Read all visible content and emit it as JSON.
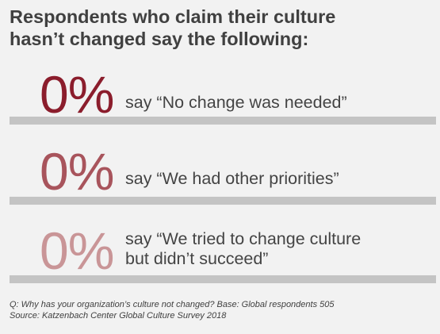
{
  "title": {
    "line1": "Respondents who claim their culture",
    "line2": "hasn’t changed say the following:"
  },
  "chart_data": {
    "type": "table",
    "items": [
      {
        "value": 0,
        "label": "0%",
        "text_lines": [
          "say “No change was needed”"
        ],
        "color": "#8b1d2c"
      },
      {
        "value": 0,
        "label": "0%",
        "text_lines": [
          "say “We had other priorities”"
        ],
        "color": "#a8545c"
      },
      {
        "value": 0,
        "label": "0%",
        "text_lines": [
          "say “We tried to change culture",
          "but didn’t succeed”"
        ],
        "color": "#c99597"
      }
    ]
  },
  "footnote": {
    "question": "Q: Why has your organization’s culture not changed? Base: Global respondents 505",
    "source": "Source: Katzenbach Center Global Culture Survey 2018"
  },
  "colors": {
    "background": "#f2f2f2",
    "divider": "#c4c4c4",
    "text": "#444444"
  }
}
